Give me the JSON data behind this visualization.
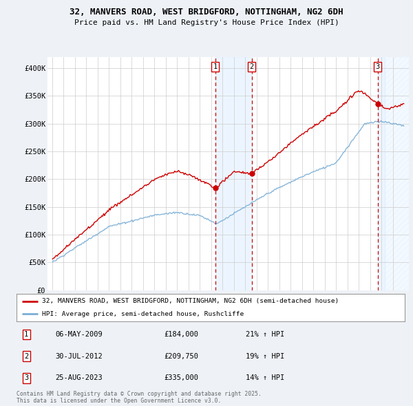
{
  "title_line1": "32, MANVERS ROAD, WEST BRIDGFORD, NOTTINGHAM, NG2 6DH",
  "title_line2": "Price paid vs. HM Land Registry's House Price Index (HPI)",
  "ylim": [
    0,
    420000
  ],
  "yticks": [
    0,
    50000,
    100000,
    150000,
    200000,
    250000,
    300000,
    350000,
    400000
  ],
  "ytick_labels": [
    "£0",
    "£50K",
    "£100K",
    "£150K",
    "£200K",
    "£250K",
    "£300K",
    "£350K",
    "£400K"
  ],
  "red_line_label": "32, MANVERS ROAD, WEST BRIDGFORD, NOTTINGHAM, NG2 6DH (semi-detached house)",
  "blue_line_label": "HPI: Average price, semi-detached house, Rushcliffe",
  "transactions": [
    {
      "num": 1,
      "date": "06-MAY-2009",
      "price": 184000,
      "pct": "21%",
      "dir": "↑",
      "x_year": 2009.37
    },
    {
      "num": 2,
      "date": "30-JUL-2012",
      "price": 209750,
      "pct": "19%",
      "dir": "↑",
      "x_year": 2012.58
    },
    {
      "num": 3,
      "date": "25-AUG-2023",
      "price": 335000,
      "pct": "14%",
      "dir": "↑",
      "x_year": 2023.65
    }
  ],
  "footer": "Contains HM Land Registry data © Crown copyright and database right 2025.\nThis data is licensed under the Open Government Licence v3.0.",
  "bg_color": "#eef2f7",
  "plot_bg_color": "#ffffff",
  "grid_color": "#cccccc",
  "red_color": "#cc0000",
  "blue_color": "#7aaed6",
  "shade_color": "#ddeeff",
  "xlim_start": 1994.6,
  "xlim_end": 2026.4,
  "start_year": 1995,
  "end_year": 2026
}
